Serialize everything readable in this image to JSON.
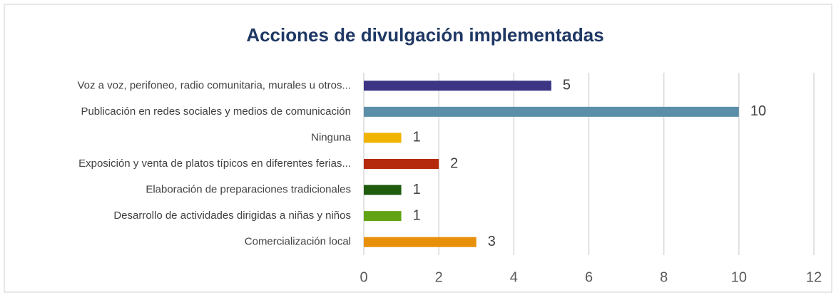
{
  "chart_data": {
    "type": "bar",
    "orientation": "horizontal",
    "title": "Acciones de divulgación implementadas",
    "categories": [
      "Voz a voz, perifoneo, radio comunitaria, murales u otros...",
      "Publicación en redes sociales y medios de comunicación",
      "Ninguna",
      "Exposición y venta de platos típicos en diferentes ferias...",
      "Elaboración de preparaciones tradicionales",
      "Desarrollo de actividades dirigidas a niñas y niños",
      "Comercialización local"
    ],
    "values": [
      5,
      10,
      1,
      2,
      1,
      1,
      3
    ],
    "colors": [
      "#3c3584",
      "#5b8ea8",
      "#f0b400",
      "#b52a0c",
      "#1f5c0e",
      "#62a313",
      "#e8900a"
    ],
    "xlim": [
      0,
      12
    ],
    "xticks": [
      0,
      2,
      4,
      6,
      8,
      10,
      12
    ],
    "grid": true
  }
}
